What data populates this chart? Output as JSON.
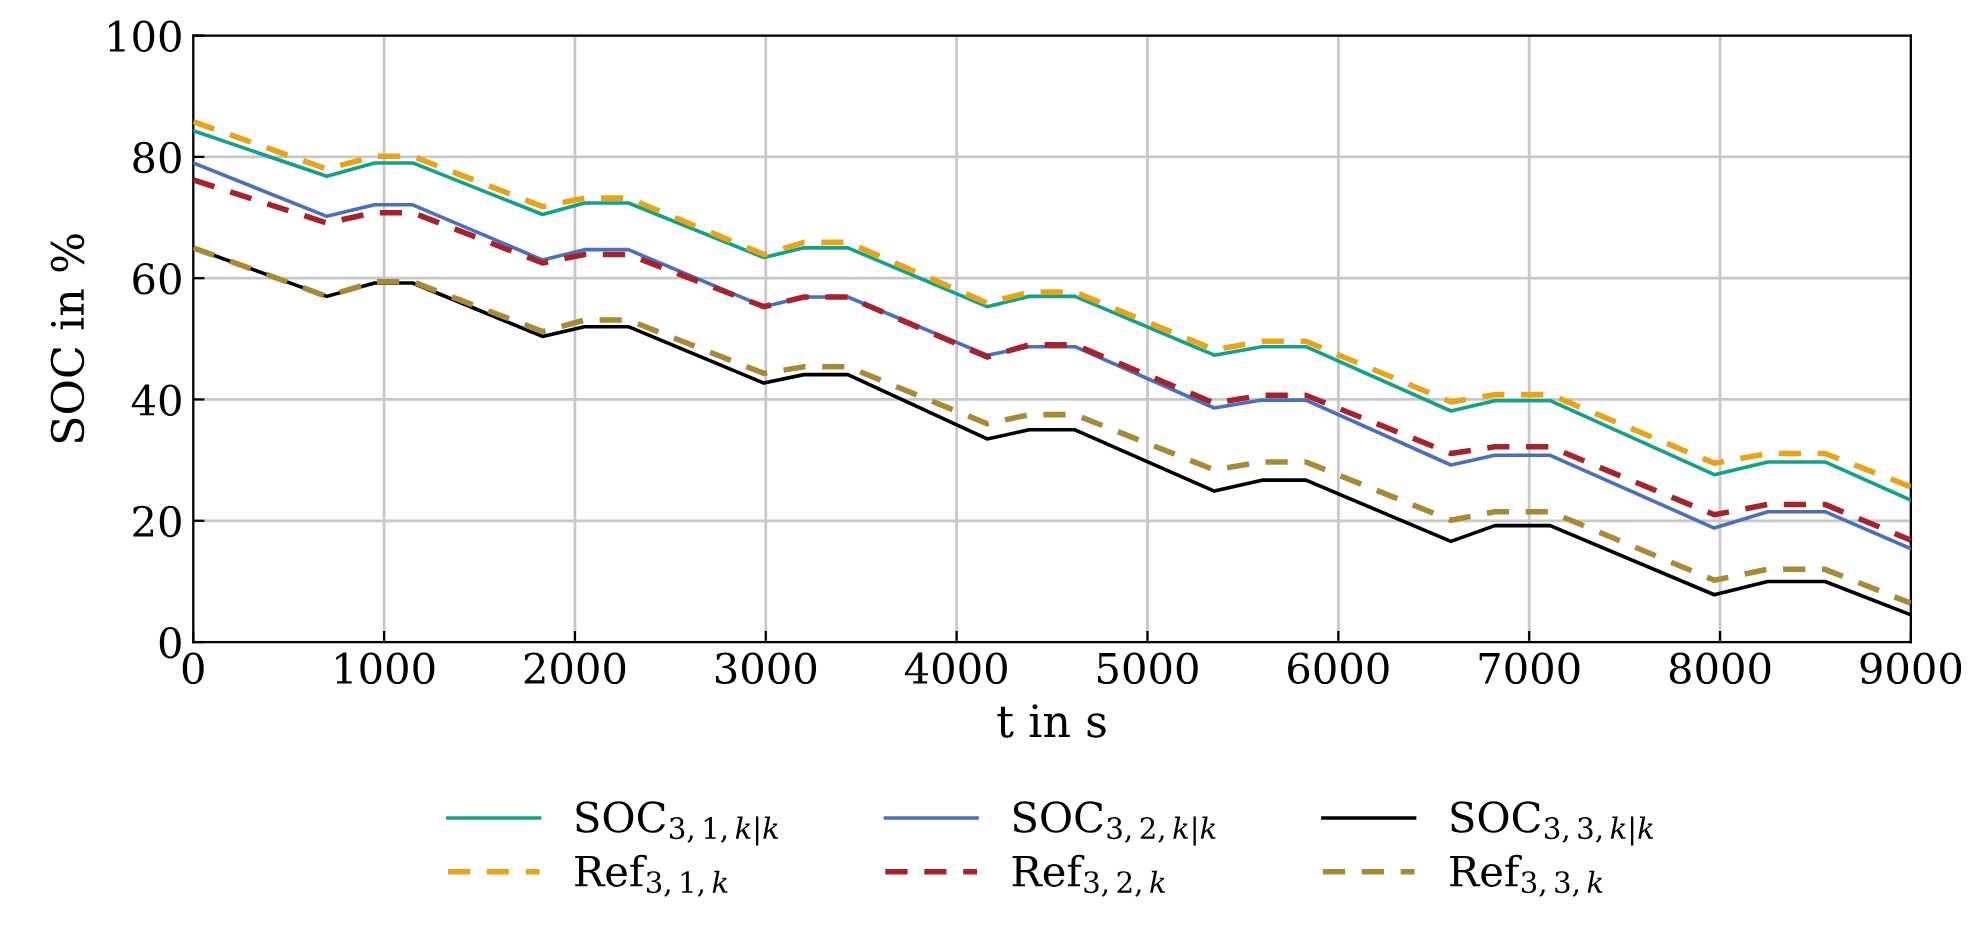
{
  "chart_data": {
    "type": "line",
    "xlabel": "t in s",
    "ylabel": "SOC in %",
    "x": [
      0,
      700,
      950,
      1150,
      1830,
      2050,
      2280,
      2990,
      3200,
      3430,
      4160,
      4380,
      4620,
      5350,
      5600,
      5830,
      6590,
      6820,
      7110,
      7970,
      8250,
      8550,
      9000
    ],
    "series": [
      {
        "name": "SOC$_{3,1,k|k}$",
        "color": "#10a38a",
        "line_style": "solid",
        "values": [
          84.3,
          76.8,
          79.0,
          79.0,
          70.5,
          72.4,
          72.4,
          63.4,
          65.0,
          65.0,
          55.3,
          57.0,
          57.0,
          47.3,
          48.7,
          48.7,
          38.1,
          39.8,
          39.8,
          27.6,
          29.7,
          29.7,
          23.4
        ]
      },
      {
        "name": "Ref$_{3,1,k}$",
        "color": "#e8a317",
        "line_style": "dashed",
        "values": [
          85.8,
          78.0,
          80.1,
          80.1,
          71.8,
          73.2,
          73.2,
          63.9,
          65.9,
          65.9,
          55.9,
          57.7,
          57.7,
          48.2,
          49.6,
          49.6,
          39.6,
          40.8,
          40.8,
          29.5,
          31.1,
          31.1,
          25.6
        ]
      },
      {
        "name": "SOC$_{3,2,k|k}$",
        "color": "#4a6fbf",
        "line_style": "solid",
        "values": [
          79.0,
          70.2,
          72.1,
          72.1,
          63.0,
          64.7,
          64.7,
          55.3,
          56.9,
          56.9,
          47.3,
          48.7,
          48.7,
          38.6,
          39.9,
          39.9,
          29.2,
          30.8,
          30.8,
          18.8,
          21.5,
          21.5,
          15.4
        ]
      },
      {
        "name": "Ref$_{3,2,k}$",
        "color": "#a8222e",
        "line_style": "dashed",
        "values": [
          76.2,
          69.1,
          70.8,
          70.8,
          62.5,
          63.9,
          63.9,
          55.3,
          56.9,
          56.9,
          47.0,
          49.0,
          49.0,
          39.4,
          40.7,
          40.7,
          31.1,
          32.2,
          32.2,
          21.0,
          22.7,
          22.7,
          16.8
        ]
      },
      {
        "name": "SOC$_{3,3,k|k}$",
        "color": "#000000",
        "line_style": "solid",
        "values": [
          65.0,
          57.0,
          59.2,
          59.2,
          50.4,
          52.0,
          52.0,
          42.7,
          44.1,
          44.1,
          33.5,
          35.0,
          35.0,
          24.9,
          26.7,
          26.7,
          16.6,
          19.2,
          19.2,
          7.8,
          10.0,
          10.0,
          4.5
        ]
      },
      {
        "name": "Ref$_{3,3,k}$",
        "color": "#a88a35",
        "line_style": "dashed",
        "values": [
          65.0,
          57.0,
          59.4,
          59.4,
          51.2,
          53.1,
          53.1,
          44.3,
          45.4,
          45.4,
          36.0,
          37.5,
          37.5,
          28.4,
          29.7,
          29.7,
          20.1,
          21.5,
          21.5,
          10.2,
          12.0,
          12.0,
          6.4
        ]
      }
    ],
    "xlim": [
      0,
      9000
    ],
    "xticks": [
      0,
      1000,
      2000,
      3000,
      4000,
      5000,
      6000,
      7000,
      8000,
      9000
    ],
    "ylim": [
      0,
      100
    ],
    "yticks": [
      0,
      20,
      40,
      60,
      80,
      100
    ],
    "grid": true,
    "legend": "bottom"
  }
}
